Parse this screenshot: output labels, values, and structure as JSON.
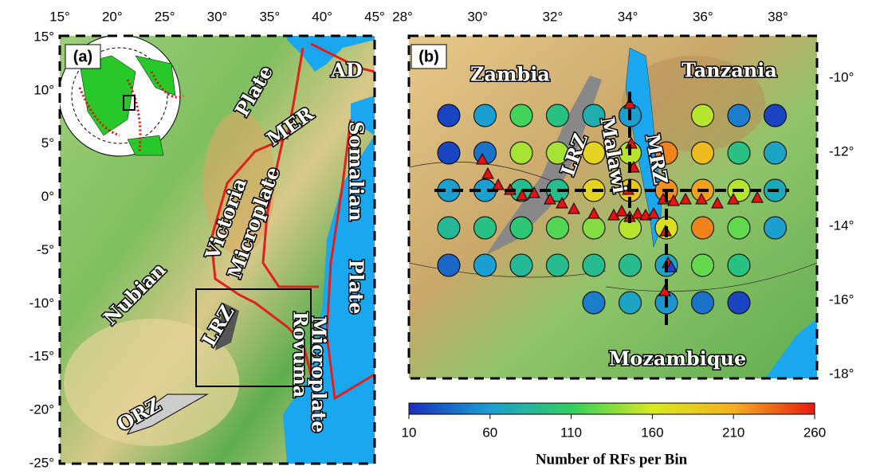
{
  "panel_a": {
    "label": "(a)",
    "x_labels": [
      "15°",
      "20°",
      "25°",
      "30°",
      "35°",
      "40°",
      "45°"
    ],
    "y_labels": [
      "15°",
      "10°",
      "5°",
      "0°",
      "-5°",
      "-10°",
      "-15°",
      "-20°",
      "-25°"
    ],
    "places": [
      "AD",
      "MER",
      "Plate",
      "Somalian",
      "Plate",
      "Victoria",
      "Microplate",
      "Nubian",
      "LRZ",
      "Rovuma",
      "Microplate",
      "ORZ"
    ]
  },
  "panel_b": {
    "label": "(b)",
    "x_labels": [
      "28°",
      "30°",
      "32°",
      "34°",
      "36°",
      "38°"
    ],
    "y_labels": [
      "-10°",
      "-12°",
      "-14°",
      "-16°",
      "-18°"
    ],
    "places": [
      "Zambia",
      "Tanzania",
      "LRZ",
      "Malawi",
      "MRZ",
      "Mozambique"
    ],
    "bins": [
      [
        20,
        60,
        115,
        95,
        75,
        60,
        null,
        150,
        45,
        20
      ],
      [
        20,
        40,
        145,
        145,
        180,
        150,
        225,
        200,
        95,
        65
      ],
      [
        60,
        60,
        90,
        90,
        180,
        190,
        220,
        215,
        150,
        70
      ],
      [
        85,
        95,
        100,
        120,
        135,
        150,
        170,
        225,
        125,
        60
      ],
      [
        35,
        60,
        85,
        90,
        90,
        90,
        65,
        125,
        95,
        null
      ],
      [
        null,
        null,
        null,
        null,
        45,
        65,
        55,
        40,
        20,
        null
      ]
    ]
  },
  "colorbar": {
    "range": [
      10,
      260
    ],
    "ticks": [
      10,
      60,
      110,
      160,
      210,
      260
    ],
    "label": "Number of RFs per Bin",
    "colors": [
      "#1a2fbf",
      "#1a9fd0",
      "#30d060",
      "#d8ea20",
      "#f5b020",
      "#e81a10"
    ]
  }
}
